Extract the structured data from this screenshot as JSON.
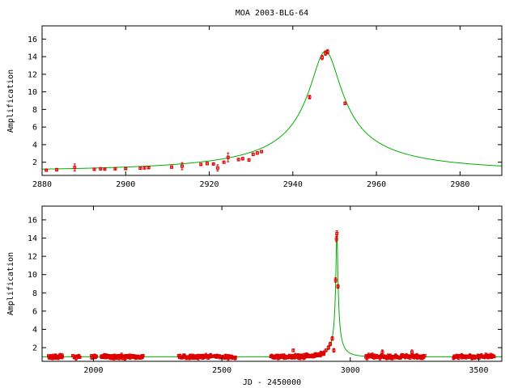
{
  "title": "MOA 2003-BLG-64",
  "colors": {
    "model": "#00b000",
    "data": "#dd0000",
    "axes": "#000000"
  },
  "chart_data": [
    {
      "type": "line",
      "ylabel": "Amplification",
      "xlabel": "",
      "xlim": [
        2880,
        2990
      ],
      "ylim": [
        0.5,
        17.5
      ],
      "xticks": [
        2880,
        2900,
        2920,
        2940,
        2960,
        2980
      ],
      "yticks": [
        2,
        4,
        6,
        8,
        10,
        12,
        14,
        16
      ],
      "model": {
        "t0": 2947.8,
        "tE": 55,
        "u0": 0.0685,
        "range": [
          2880,
          2990
        ]
      },
      "points": [
        {
          "x": 2881.0,
          "y": 1.1,
          "e": 0.1
        },
        {
          "x": 2883.5,
          "y": 1.15,
          "e": 0.15
        },
        {
          "x": 2887.8,
          "y": 1.4,
          "e": 0.4
        },
        {
          "x": 2892.5,
          "y": 1.2,
          "e": 0.12
        },
        {
          "x": 2894.0,
          "y": 1.25,
          "e": 0.12
        },
        {
          "x": 2895.0,
          "y": 1.22,
          "e": 0.1
        },
        {
          "x": 2897.5,
          "y": 1.25,
          "e": 0.1
        },
        {
          "x": 2900.0,
          "y": 1.28,
          "e": 0.1
        },
        {
          "x": 2903.5,
          "y": 1.32,
          "e": 0.12
        },
        {
          "x": 2904.5,
          "y": 1.35,
          "e": 0.12
        },
        {
          "x": 2905.5,
          "y": 1.38,
          "e": 0.1
        },
        {
          "x": 2911.0,
          "y": 1.45,
          "e": 0.15
        },
        {
          "x": 2913.5,
          "y": 1.55,
          "e": 0.4
        },
        {
          "x": 2918.0,
          "y": 1.75,
          "e": 0.12
        },
        {
          "x": 2919.5,
          "y": 1.85,
          "e": 0.15
        },
        {
          "x": 2921.0,
          "y": 1.8,
          "e": 0.1
        },
        {
          "x": 2922.0,
          "y": 1.35,
          "e": 0.35
        },
        {
          "x": 2923.5,
          "y": 2.0,
          "e": 0.12
        },
        {
          "x": 2924.5,
          "y": 2.55,
          "e": 0.5
        },
        {
          "x": 2927.0,
          "y": 2.3,
          "e": 0.15
        },
        {
          "x": 2928.0,
          "y": 2.4,
          "e": 0.15
        },
        {
          "x": 2929.5,
          "y": 2.25,
          "e": 0.15
        },
        {
          "x": 2930.5,
          "y": 2.9,
          "e": 0.15
        },
        {
          "x": 2931.5,
          "y": 3.05,
          "e": 0.15
        },
        {
          "x": 2932.5,
          "y": 3.2,
          "e": 0.12
        },
        {
          "x": 2944.0,
          "y": 9.4,
          "e": 0.2
        },
        {
          "x": 2947.0,
          "y": 13.9,
          "e": 0.25
        },
        {
          "x": 2947.8,
          "y": 14.4,
          "e": 0.25
        },
        {
          "x": 2948.3,
          "y": 14.55,
          "e": 0.25
        },
        {
          "x": 2952.5,
          "y": 8.7,
          "e": 0.15
        }
      ]
    },
    {
      "type": "line",
      "ylabel": "Amplification",
      "xlabel": "JD - 2450000",
      "xlim": [
        1800,
        3590
      ],
      "ylim": [
        0.5,
        17.5
      ],
      "xticks": [
        2000,
        2500,
        3000,
        3500
      ],
      "yticks": [
        2,
        4,
        6,
        8,
        10,
        12,
        14,
        16
      ],
      "model": {
        "t0": 2947.8,
        "tE": 55,
        "u0": 0.0685,
        "range": [
          1800,
          3590
        ]
      },
      "point_groups": [
        {
          "from": 1825,
          "to": 1880,
          "n": 22
        },
        {
          "from": 1918,
          "to": 1948,
          "n": 8
        },
        {
          "from": 1990,
          "to": 2012,
          "n": 8
        },
        {
          "from": 2030,
          "to": 2195,
          "n": 65
        },
        {
          "from": 2330,
          "to": 2555,
          "n": 75
        },
        {
          "from": 2690,
          "to": 2900,
          "n": 80
        },
        {
          "from": 3060,
          "to": 3290,
          "n": 85
        },
        {
          "from": 3400,
          "to": 3560,
          "n": 55
        }
      ],
      "points": [
        {
          "x": 2778,
          "y": 1.7,
          "e": 0.15
        },
        {
          "x": 2905,
          "y": 1.7,
          "e": 0.15
        },
        {
          "x": 2915,
          "y": 2.0,
          "e": 0.2
        },
        {
          "x": 2922,
          "y": 2.4,
          "e": 0.2
        },
        {
          "x": 2930,
          "y": 3.0,
          "e": 0.2
        },
        {
          "x": 2936,
          "y": 1.7,
          "e": 0.2
        },
        {
          "x": 2943,
          "y": 9.4,
          "e": 0.25
        },
        {
          "x": 2946,
          "y": 13.9,
          "e": 0.3
        },
        {
          "x": 2948,
          "y": 14.5,
          "e": 0.3
        },
        {
          "x": 2952,
          "y": 8.7,
          "e": 0.2
        },
        {
          "x": 3125,
          "y": 1.5,
          "e": 0.25
        },
        {
          "x": 3240,
          "y": 1.5,
          "e": 0.25
        }
      ]
    }
  ]
}
